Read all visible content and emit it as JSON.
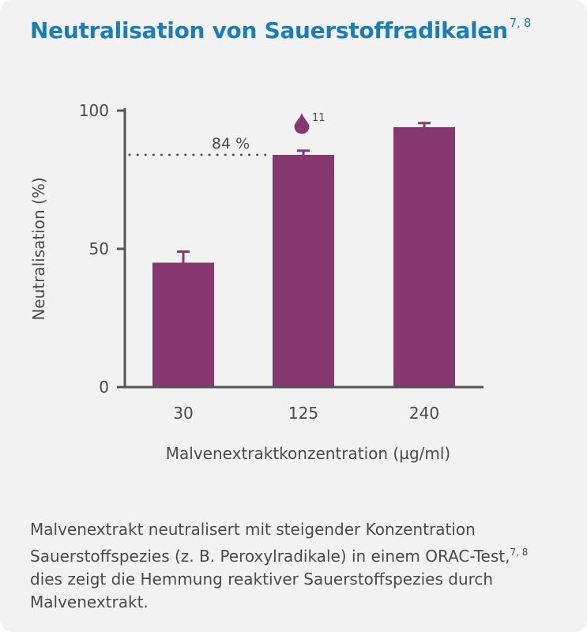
{
  "card": {
    "title": "Neutralisation von Sauerstoffradikalen",
    "title_ref": "7, 8",
    "caption_line1": "Malvenextrakt neutralisert mit steigender Konzentration",
    "caption_line2": "Sauerstoffspezies (z. B. Peroxylradikale) in einem ORAC-Test,",
    "caption_line2_ref": "7, 8",
    "caption_line3": "dies zeigt die Hemmung reaktiver Sauerstoffspezies durch",
    "caption_line4": "Malvenextrakt."
  },
  "colors": {
    "title": "#1b7db8",
    "bar": "#883871",
    "axis": "#555555",
    "text": "#4a4a4a",
    "background": "#f2f2f2"
  },
  "chart_data": {
    "type": "bar",
    "title": "Neutralisation von Sauerstoffradikalen",
    "xlabel": "Malvenextraktkonzentration (µg/ml)",
    "ylabel": "Neutralisation (%)",
    "categories": [
      "30",
      "125",
      "240"
    ],
    "values": [
      45,
      84,
      94
    ],
    "error": [
      4,
      1.5,
      1.5
    ],
    "ylim": [
      0,
      100
    ],
    "yticks": [
      0,
      50,
      100
    ],
    "grid": false,
    "reference_line": {
      "value": 84,
      "label": "84 %",
      "style": "dotted"
    },
    "annotation": {
      "category": "125",
      "icon": "drop-icon",
      "ref": "11"
    }
  }
}
